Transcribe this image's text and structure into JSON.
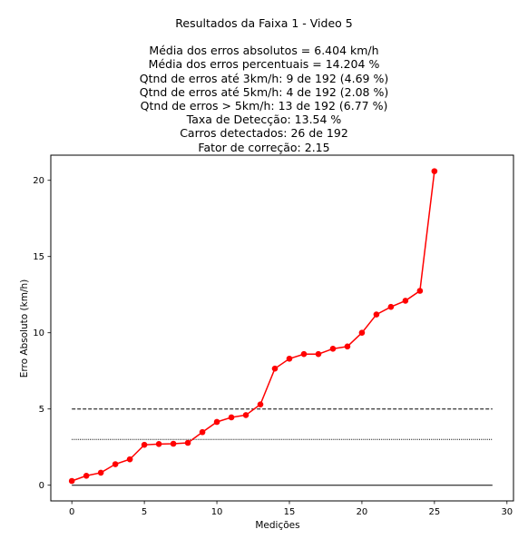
{
  "chart_data": {
    "type": "line",
    "title": "Resultados da Faixa 1 - Video 5",
    "stats": [
      "Média dos erros absolutos =  6.404 km/h",
      "Média dos erros percentuais = 14.204 %",
      "Qtnd de erros até 3km/h: 9 de 192 (4.69 %)",
      "Qtnd de erros até 5km/h: 4 de 192 (2.08 %)",
      "Qtnd de erros > 5km/h: 13 de 192 (6.77 %)",
      "Taxa de Detecção: 13.54 %",
      "Carros detectados: 26 de 192",
      "Fator de correção: 2.15"
    ],
    "xlabel": "Medições",
    "ylabel": "Erro Absoluto (km/h)",
    "xlim": [
      -1.45,
      30.45
    ],
    "ylim": [
      -1.03,
      21.65
    ],
    "xticks": [
      0,
      5,
      10,
      15,
      20,
      25,
      30
    ],
    "yticks": [
      0,
      5,
      10,
      15,
      20
    ],
    "grid": false,
    "series": [
      {
        "color": "#ff0000",
        "marker": "circle",
        "x": [
          0,
          1,
          2,
          3,
          4,
          5,
          6,
          7,
          8,
          9,
          10,
          11,
          12,
          13,
          14,
          15,
          16,
          17,
          18,
          19,
          20,
          21,
          22,
          23,
          24,
          25
        ],
        "values": [
          0.28,
          0.62,
          0.82,
          1.38,
          1.7,
          2.65,
          2.7,
          2.72,
          2.78,
          3.48,
          4.15,
          4.45,
          4.6,
          5.3,
          7.65,
          8.3,
          8.6,
          8.6,
          8.95,
          9.1,
          10.0,
          11.2,
          11.7,
          12.1,
          12.75,
          20.6
        ]
      }
    ],
    "reference_lines": [
      {
        "y": 0,
        "style": "solid",
        "color": "#000000",
        "x_range": [
          0,
          29
        ]
      },
      {
        "y": 3,
        "style": "dotted",
        "color": "#000000",
        "x_range": [
          0,
          29
        ]
      },
      {
        "y": 5,
        "style": "dashed",
        "color": "#000000",
        "x_range": [
          0,
          29
        ]
      }
    ]
  }
}
